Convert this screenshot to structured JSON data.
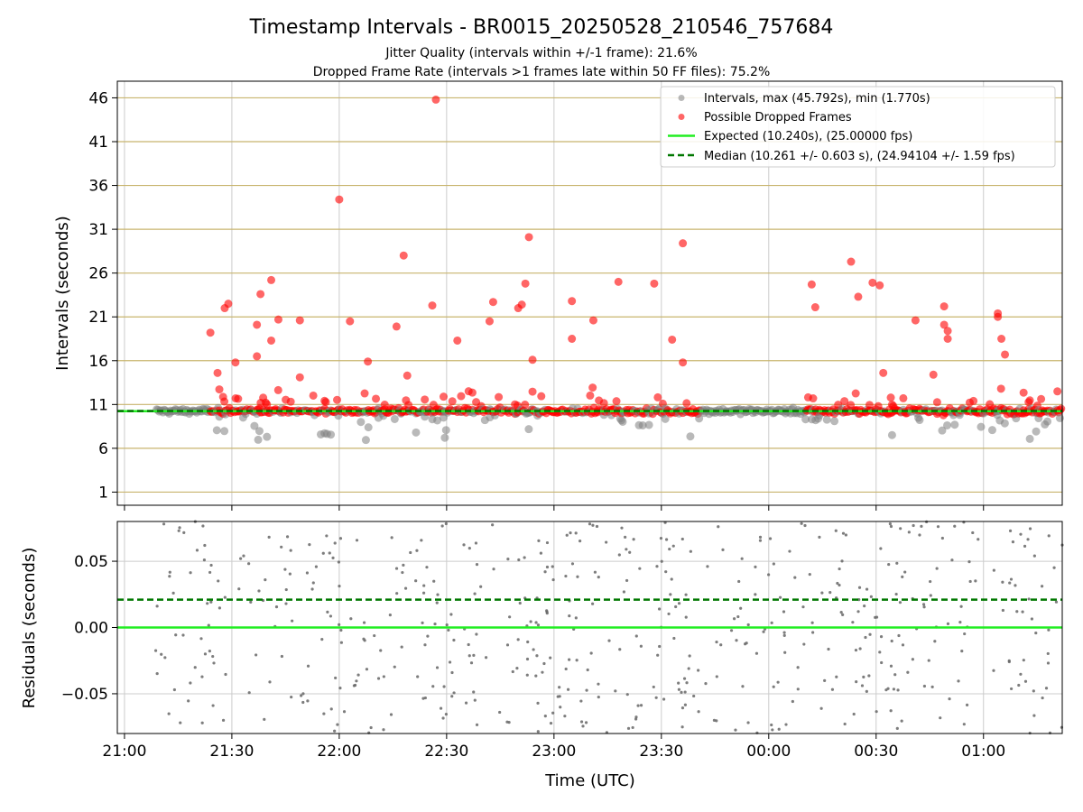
{
  "figure": {
    "title": "Timestamp Intervals - BR0015_20250528_210546_757684",
    "subtitle_1": "Jitter Quality (intervals within +/-1 frame): 21.6%",
    "subtitle_2": "Dropped Frame Rate (intervals >1 frames late within 50 FF files): 75.2%"
  },
  "colors": {
    "gray_points": "#808080",
    "red_points": "#ff0000",
    "expected_line": "#22ee22",
    "median_line": "#007700",
    "hgrid": "#c8b46e",
    "vgrid": "#cccccc"
  },
  "chart_data": [
    {
      "type": "scatter",
      "panel": "intervals",
      "ylabel": "Intervals (seconds)",
      "xlabel": "",
      "x_ticks": [
        "21:00",
        "21:30",
        "22:00",
        "22:30",
        "23:00",
        "23:30",
        "00:00",
        "00:30",
        "01:00"
      ],
      "x_range": [
        "20:58",
        "01:22"
      ],
      "y_ticks": [
        1,
        6,
        11,
        16,
        21,
        26,
        31,
        36,
        41,
        46
      ],
      "ylim": [
        -0.5,
        47.9
      ],
      "grid": true,
      "legend_position": "top-right",
      "legend": {
        "intervals": "Intervals, max (45.792s), min (1.770s)",
        "dropped": "Possible Dropped Frames",
        "expected": "Expected (10.240s), (25.00000 fps)",
        "median": "Median (10.261 +/- 0.603 s), (24.94104 +/- 1.59 fps)"
      },
      "expected_value": 10.24,
      "median_value": 10.261,
      "highlighted_points": [
        {
          "time": "21:24",
          "value": 19.2
        },
        {
          "time": "21:26",
          "value": 14.6
        },
        {
          "time": "21:28",
          "value": 22.0
        },
        {
          "time": "21:29",
          "value": 22.5
        },
        {
          "time": "21:31",
          "value": 15.8
        },
        {
          "time": "21:37",
          "value": 16.5
        },
        {
          "time": "21:37",
          "value": 20.1
        },
        {
          "time": "21:38",
          "value": 23.6
        },
        {
          "time": "21:41",
          "value": 18.3
        },
        {
          "time": "21:41",
          "value": 25.2
        },
        {
          "time": "21:43",
          "value": 20.7
        },
        {
          "time": "21:49",
          "value": 14.1
        },
        {
          "time": "21:49",
          "value": 20.6
        },
        {
          "time": "22:00",
          "value": 34.4
        },
        {
          "time": "22:03",
          "value": 20.5
        },
        {
          "time": "22:08",
          "value": 15.9
        },
        {
          "time": "22:16",
          "value": 19.9
        },
        {
          "time": "22:18",
          "value": 28.0
        },
        {
          "time": "22:19",
          "value": 14.3
        },
        {
          "time": "22:26",
          "value": 22.3
        },
        {
          "time": "22:27",
          "value": 45.8
        },
        {
          "time": "22:33",
          "value": 18.3
        },
        {
          "time": "22:42",
          "value": 20.5
        },
        {
          "time": "22:43",
          "value": 22.7
        },
        {
          "time": "22:50",
          "value": 22.0
        },
        {
          "time": "22:51",
          "value": 22.4
        },
        {
          "time": "22:52",
          "value": 24.8
        },
        {
          "time": "22:53",
          "value": 30.1
        },
        {
          "time": "22:54",
          "value": 16.1
        },
        {
          "time": "23:05",
          "value": 18.5
        },
        {
          "time": "23:05",
          "value": 22.8
        },
        {
          "time": "23:11",
          "value": 20.6
        },
        {
          "time": "23:18",
          "value": 25.0
        },
        {
          "time": "23:28",
          "value": 24.8
        },
        {
          "time": "23:33",
          "value": 18.4
        },
        {
          "time": "23:36",
          "value": 29.4
        },
        {
          "time": "23:36",
          "value": 15.8
        },
        {
          "time": "00:12",
          "value": 24.7
        },
        {
          "time": "00:13",
          "value": 22.1
        },
        {
          "time": "00:23",
          "value": 27.3
        },
        {
          "time": "00:25",
          "value": 23.3
        },
        {
          "time": "00:29",
          "value": 24.9
        },
        {
          "time": "00:31",
          "value": 24.6
        },
        {
          "time": "00:32",
          "value": 14.6
        },
        {
          "time": "00:41",
          "value": 20.6
        },
        {
          "time": "00:46",
          "value": 14.4
        },
        {
          "time": "00:49",
          "value": 20.1
        },
        {
          "time": "00:49",
          "value": 22.2
        },
        {
          "time": "00:50",
          "value": 18.5
        },
        {
          "time": "00:50",
          "value": 19.4
        },
        {
          "time": "01:04",
          "value": 21.0
        },
        {
          "time": "01:04",
          "value": 21.4
        },
        {
          "time": "01:05",
          "value": 18.5
        },
        {
          "time": "01:06",
          "value": 16.7
        }
      ]
    },
    {
      "type": "scatter",
      "panel": "residuals",
      "ylabel": "Residuals (seconds)",
      "xlabel": "Time (UTC)",
      "x_ticks": [
        "21:00",
        "21:30",
        "22:00",
        "22:30",
        "23:00",
        "23:30",
        "00:00",
        "00:30",
        "01:00"
      ],
      "y_ticks": [
        "0.05",
        "0.00",
        "−0.05"
      ],
      "ylim": [
        -0.08,
        0.08
      ],
      "expected_value": 0.0,
      "median_value": 0.021,
      "grid": true
    }
  ]
}
